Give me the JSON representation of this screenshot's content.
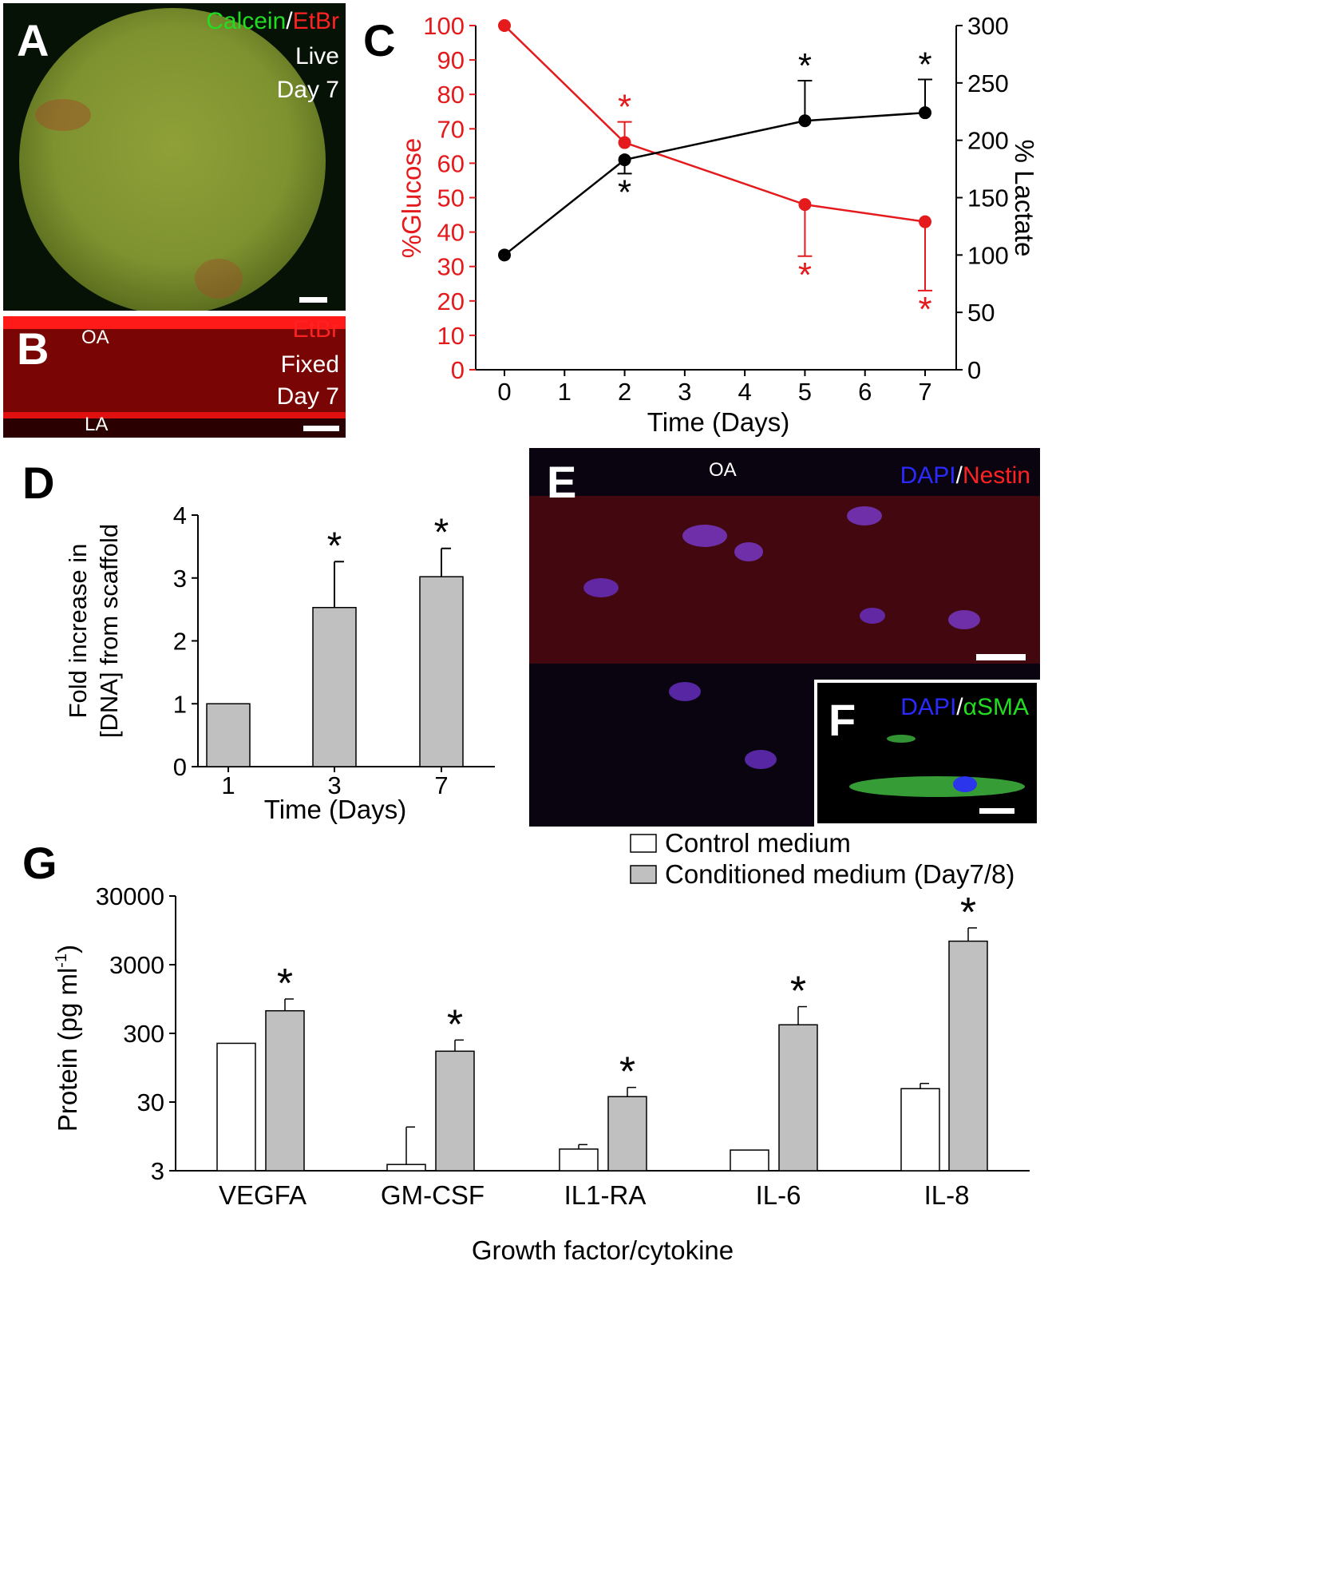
{
  "panels": {
    "a": {
      "label": "A",
      "stain1": "Calcein",
      "sep": "/",
      "stain2": "EtBr",
      "line2": "Live",
      "line3": "Day 7"
    },
    "b": {
      "label": "B",
      "stain": "EtBr",
      "line2": "Fixed",
      "line3": "Day 7",
      "top": "OA",
      "bottom": "LA"
    },
    "c": {
      "label": "C"
    },
    "d": {
      "label": "D"
    },
    "e": {
      "label": "E",
      "top": "OA",
      "stain1": "DAPI",
      "sep": "/",
      "stain2": "Nestin"
    },
    "f": {
      "label": "F",
      "stain1": "DAPI",
      "sep": "/",
      "stain2": "αSMA"
    },
    "g": {
      "label": "G"
    }
  },
  "colors": {
    "glucose": "#e41a1c",
    "lactate": "#000000",
    "bar_gray": "#c0c0c0",
    "calcein": "#22dd22",
    "etbr": "#ff2222",
    "dapi": "#2a2aff",
    "sma": "#22dd22"
  },
  "chart_data": [
    {
      "id": "C",
      "type": "line",
      "xlabel": "Time (Days)",
      "ylabel_left": "%Glucose",
      "ylabel_right": "% Lactate",
      "x_ticks": [
        "0",
        "1",
        "2",
        "3",
        "4",
        "5",
        "6",
        "7"
      ],
      "xlim": [
        0,
        7
      ],
      "ylim_left": [
        0,
        100
      ],
      "ylim_right": [
        0,
        300
      ],
      "yticks_left": [
        "0",
        "10",
        "20",
        "30",
        "40",
        "50",
        "60",
        "70",
        "80",
        "90",
        "100"
      ],
      "yticks_right": [
        "0",
        "50",
        "100",
        "150",
        "200",
        "250",
        "300"
      ],
      "series": [
        {
          "axis": "left",
          "color": "#e41a1c",
          "x": [
            0,
            2,
            5,
            7
          ],
          "y": [
            100,
            66,
            48,
            43
          ],
          "err": [
            0,
            6,
            15,
            20
          ],
          "err_dir": [
            0,
            1,
            -1,
            -1
          ],
          "star": "*",
          "sig": [
            false,
            true,
            true,
            true
          ]
        },
        {
          "axis": "right",
          "color": "#000000",
          "x": [
            0,
            2,
            5,
            7
          ],
          "y": [
            100,
            183,
            217,
            224
          ],
          "err": [
            0,
            12,
            35,
            29
          ],
          "err_dir": [
            0,
            -1,
            1,
            1
          ],
          "star": "*",
          "sig": [
            false,
            true,
            true,
            true
          ]
        }
      ]
    },
    {
      "id": "D",
      "type": "bar",
      "xlabel": "Time (Days)",
      "ylabel_line1": "Fold increase in",
      "ylabel_line2": "[DNA] from scaffold",
      "categories": [
        "1",
        "3",
        "7"
      ],
      "values": [
        1.0,
        2.53,
        3.02
      ],
      "err": [
        0,
        0.73,
        0.45
      ],
      "ylim": [
        0,
        4
      ],
      "yticks": [
        "0",
        "1",
        "2",
        "3",
        "4"
      ],
      "star": "*",
      "sig": [
        false,
        true,
        true
      ]
    },
    {
      "id": "G",
      "type": "bar",
      "xlabel": "Growth factor/cytokine",
      "ylabel": "Protein (pg ml",
      "ylabel_sup": "-1",
      "ylabel_end": ")",
      "scale": "log",
      "ylim": [
        3,
        30000
      ],
      "ytick_values": [
        3,
        30,
        300,
        3000,
        30000
      ],
      "yticks": [
        "3",
        "30",
        "300",
        "3000",
        "30000"
      ],
      "categories": [
        "VEGFA",
        "GM-CSF",
        "IL1-RA",
        "IL-6",
        "IL-8"
      ],
      "legend": [
        "Control medium",
        "Conditioned medium (Day7/8)"
      ],
      "legend_position": "top-right",
      "series": [
        {
          "name": "Control medium",
          "color": "#ffffff",
          "values": [
            215,
            3.7,
            6.2,
            6.0,
            47
          ],
          "err_top": [
            215,
            13,
            7.2,
            6.0,
            56
          ]
        },
        {
          "name": "Conditioned medium (Day7/8)",
          "color": "#c0c0c0",
          "values": [
            640,
            165,
            36,
            400,
            6600
          ],
          "err_top": [
            950,
            240,
            49,
            735,
            10300
          ]
        }
      ],
      "star": "*",
      "sig": [
        true,
        true,
        true,
        true,
        true
      ]
    }
  ]
}
